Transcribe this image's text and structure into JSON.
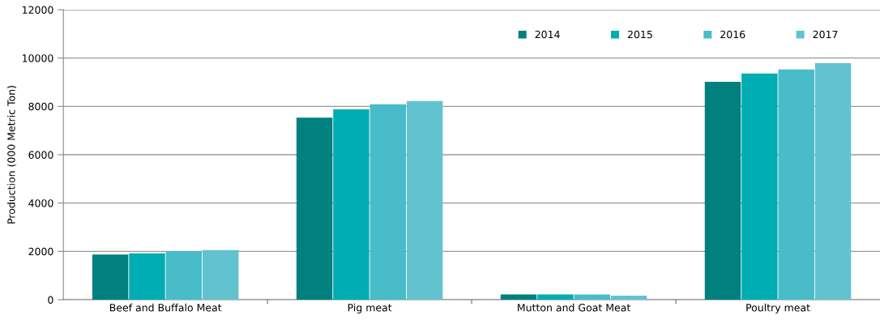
{
  "chart_data": {
    "type": "bar",
    "ylabel": "Production (000 Metric Ton)",
    "categories": [
      "Beef and Buffalo Meat",
      "Pig meat",
      "Mutton and Goat Meat",
      "Poultry meat"
    ],
    "series": [
      {
        "name": "2014",
        "color": "#00807f",
        "values": [
          1870,
          7530,
          220,
          9020
        ]
      },
      {
        "name": "2015",
        "color": "#00adb3",
        "values": [
          1920,
          7880,
          220,
          9360
        ]
      },
      {
        "name": "2016",
        "color": "#48bcc8",
        "values": [
          2000,
          8090,
          220,
          9530
        ]
      },
      {
        "name": "2017",
        "color": "#62c2d0",
        "values": [
          2050,
          8220,
          170,
          9790
        ]
      }
    ],
    "ylim": [
      0,
      12000
    ],
    "yticks": [
      0,
      2000,
      4000,
      6000,
      8000,
      10000,
      12000
    ],
    "grid": "y",
    "legend": "top right"
  }
}
